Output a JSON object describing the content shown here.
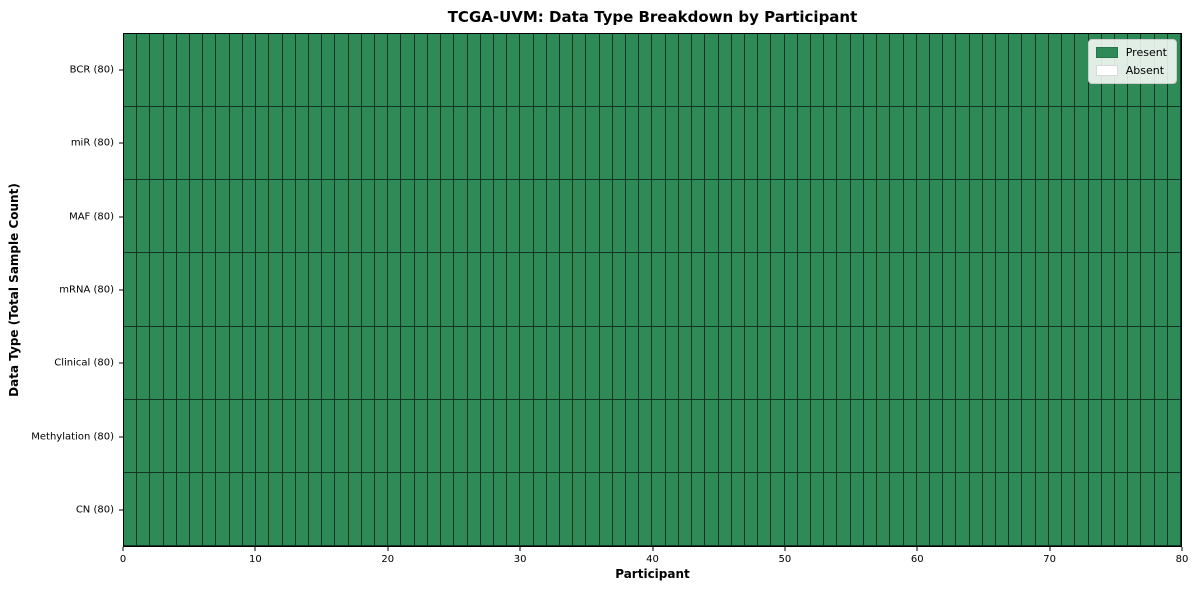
{
  "chart_data": {
    "type": "heatmap",
    "title": "TCGA-UVM: Data Type Breakdown by Participant",
    "xlabel": "Participant",
    "ylabel": "Data Type (Total Sample Count)",
    "participants": 80,
    "x_range": [
      0,
      80
    ],
    "x_ticks": [
      0,
      10,
      20,
      30,
      40,
      50,
      60,
      70,
      80
    ],
    "rows": [
      {
        "label": "BCR (80)",
        "data_type": "BCR",
        "total": 80,
        "present": 80,
        "absent": 0
      },
      {
        "label": "miR (80)",
        "data_type": "miR",
        "total": 80,
        "present": 80,
        "absent": 0
      },
      {
        "label": "MAF (80)",
        "data_type": "MAF",
        "total": 80,
        "present": 80,
        "absent": 0
      },
      {
        "label": "mRNA (80)",
        "data_type": "mRNA",
        "total": 80,
        "present": 80,
        "absent": 0
      },
      {
        "label": "Clinical (80)",
        "data_type": "Clinical",
        "total": 80,
        "present": 80,
        "absent": 0
      },
      {
        "label": "Methylation (80)",
        "data_type": "Methylation",
        "total": 80,
        "present": 80,
        "absent": 0
      },
      {
        "label": "CN (80)",
        "data_type": "CN",
        "total": 80,
        "present": 80,
        "absent": 0
      }
    ],
    "present_color": "#2e8b57",
    "absent_color": "#ffffff",
    "cell_edge_color": "#1a1a1a",
    "legend": [
      {
        "label": "Present",
        "color": "#2e8b57"
      },
      {
        "label": "Absent",
        "color": "#ffffff"
      }
    ],
    "legend_position": "upper right",
    "grid": true
  }
}
